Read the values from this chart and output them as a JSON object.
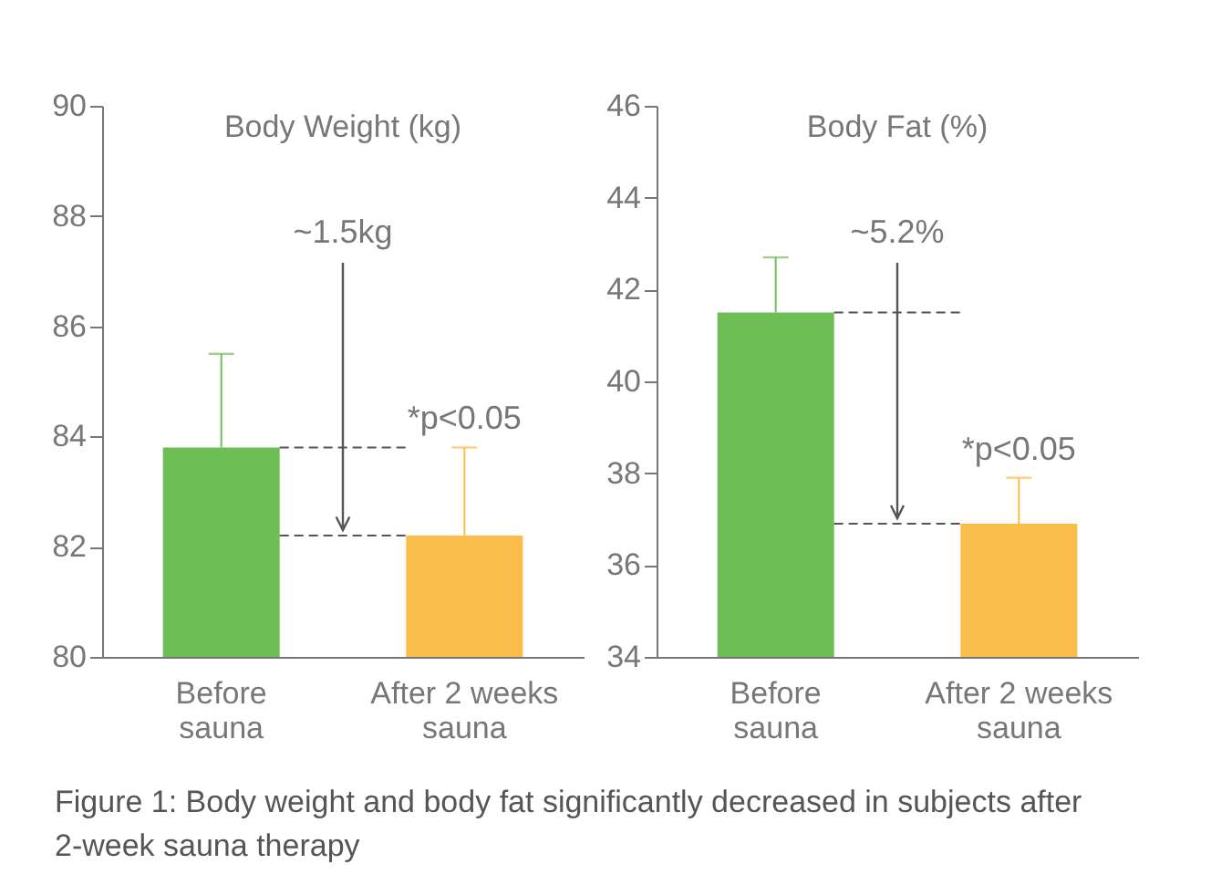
{
  "chart_data": [
    {
      "type": "bar",
      "title": "Body Weight (kg)",
      "categories": [
        "Before sauna",
        "After 2 weeks sauna"
      ],
      "values": [
        83.8,
        82.2
      ],
      "colors": [
        "#6dbf55",
        "#fbbd4a"
      ],
      "errors": [
        [
          83.8,
          85.5
        ],
        [
          82.2,
          83.8
        ]
      ],
      "ylim": [
        80,
        90
      ],
      "yticks": [
        80,
        82,
        84,
        86,
        88,
        90
      ],
      "ref_lines": [
        {
          "axis": "y",
          "value": 83.8,
          "line_style": "dashed",
          "color": "#555555"
        },
        {
          "axis": "y",
          "value": 82.2,
          "line_style": "dashed",
          "color": "#555555"
        }
      ],
      "annotations": [
        {
          "text": "~1.5kg",
          "y": 82.2
        },
        {
          "text": "*p<0.05",
          "x": "After 2 weeks sauna",
          "y": 83.8
        }
      ]
    },
    {
      "type": "bar",
      "title": "Body Fat (%)",
      "categories": [
        "Before sauna",
        "After 2 weeks sauna"
      ],
      "values": [
        41.5,
        36.9
      ],
      "colors": [
        "#6dbf55",
        "#fbbd4a"
      ],
      "errors": [
        [
          41.5,
          42.7
        ],
        [
          36.9,
          37.9
        ]
      ],
      "ylim": [
        34,
        46
      ],
      "yticks": [
        34,
        36,
        38,
        40,
        42,
        44,
        46
      ],
      "ref_lines": [
        {
          "axis": "y",
          "value": 41.5,
          "line_style": "dashed",
          "color": "#555555"
        },
        {
          "axis": "y",
          "value": 36.9,
          "line_style": "dashed",
          "color": "#555555"
        }
      ],
      "annotations": [
        {
          "text": "~5.2%",
          "y": 36.9
        },
        {
          "text": "*p<0.05",
          "x": "After 2 weeks sauna",
          "y": 37.9
        },
        "Figure 1: Body weight and body fat significantly decreased in subjects after 2-week sauna therapy"
      ]
    }
  ]
}
